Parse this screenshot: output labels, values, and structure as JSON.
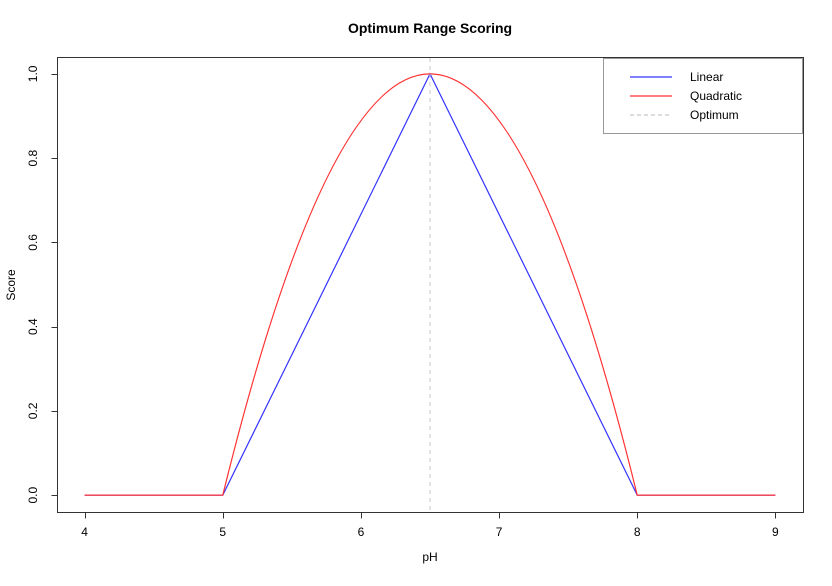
{
  "chart_data": {
    "type": "line",
    "title": "Optimum Range Scoring",
    "xlabel": "pH",
    "ylabel": "Score",
    "xlim": [
      4,
      9
    ],
    "ylim": [
      0.0,
      1.0
    ],
    "x_ticks": [
      4,
      5,
      6,
      7,
      8,
      9
    ],
    "x_tick_labels": [
      "4",
      "5",
      "6",
      "7",
      "8",
      "9"
    ],
    "y_ticks": [
      0.0,
      0.2,
      0.4,
      0.6,
      0.8,
      1.0
    ],
    "y_tick_labels": [
      "0.0",
      "0.2",
      "0.4",
      "0.6",
      "0.8",
      "1.0"
    ],
    "grid": false,
    "background": "#ffffff",
    "axis_color": "#333333",
    "range_min": 5,
    "range_max": 8,
    "optimum": 6.5,
    "optimum_line": {
      "x": 6.5,
      "color": "#c8c8c8",
      "dash": true
    },
    "series": [
      {
        "name": "Linear",
        "color": "#3333ff",
        "curve": "linear",
        "points": [
          [
            4,
            0
          ],
          [
            5,
            0
          ],
          [
            6.5,
            1
          ],
          [
            8,
            0
          ],
          [
            9,
            0
          ]
        ]
      },
      {
        "name": "Quadratic",
        "color": "#ff3333",
        "curve": "piecewise",
        "segments": [
          {
            "type": "line",
            "points": [
              [
                4,
                0
              ],
              [
                5,
                0
              ]
            ]
          },
          {
            "type": "parabola",
            "from": [
              5,
              0
            ],
            "peak": [
              6.5,
              1
            ],
            "to": [
              8,
              0
            ]
          },
          {
            "type": "line",
            "points": [
              [
                8,
                0
              ],
              [
                9,
                0
              ]
            ]
          }
        ],
        "sample_points": [
          [
            5.0,
            0.0
          ],
          [
            5.25,
            0.3056
          ],
          [
            5.5,
            0.5556
          ],
          [
            5.75,
            0.75
          ],
          [
            6.0,
            0.8889
          ],
          [
            6.25,
            0.9722
          ],
          [
            6.5,
            1.0
          ],
          [
            6.75,
            0.9722
          ],
          [
            7.0,
            0.8889
          ],
          [
            7.25,
            0.75
          ],
          [
            7.5,
            0.5556
          ],
          [
            7.75,
            0.3056
          ],
          [
            8.0,
            0.0
          ]
        ]
      }
    ],
    "legend": {
      "position": "topright",
      "border_color": "#999999",
      "entries": [
        {
          "label": "Linear",
          "color": "#3333ff",
          "dash": false
        },
        {
          "label": "Quadratic",
          "color": "#ff3333",
          "dash": false
        },
        {
          "label": "Optimum",
          "color": "#c8c8c8",
          "dash": true
        }
      ]
    }
  }
}
